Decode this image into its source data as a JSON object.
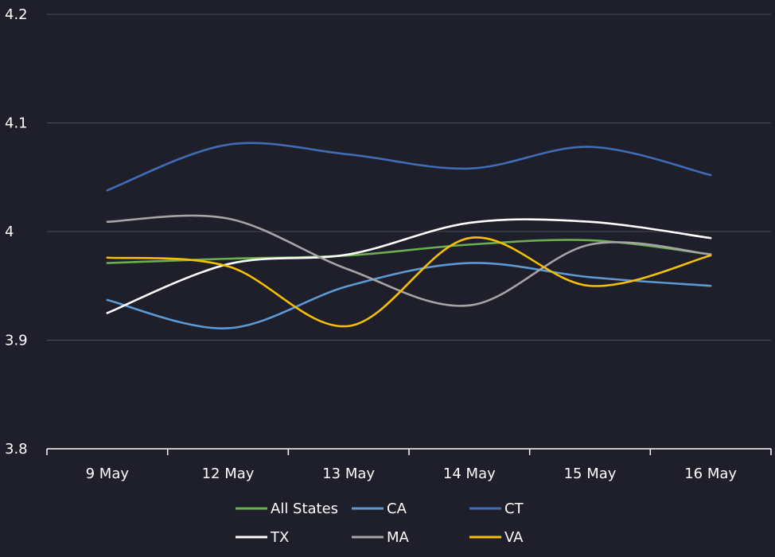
{
  "chart_data": {
    "type": "line",
    "categories": [
      "9 May",
      "12 May",
      "13 May",
      "14 May",
      "15 May",
      "16 May"
    ],
    "ylim": [
      3.8,
      4.2
    ],
    "yticks": [
      "3.8",
      "3.9",
      "4",
      "4.1",
      "4.2"
    ],
    "grid": true,
    "legend_position": "bottom",
    "series": [
      {
        "name": "All States",
        "color": "#6ab04c",
        "values": [
          3.971,
          3.975,
          3.978,
          3.988,
          3.992,
          3.979
        ]
      },
      {
        "name": "CA",
        "color": "#5b9bd5",
        "values": [
          3.937,
          3.911,
          3.95,
          3.971,
          3.958,
          3.95
        ]
      },
      {
        "name": "CT",
        "color": "#3f6db5",
        "values": [
          4.038,
          4.08,
          4.071,
          4.058,
          4.078,
          4.052
        ]
      },
      {
        "name": "TX",
        "color": "#ffffff",
        "values": [
          3.925,
          3.97,
          3.979,
          4.008,
          4.009,
          3.994
        ]
      },
      {
        "name": "MA",
        "color": "#a5a5a5",
        "values": [
          4.009,
          4.012,
          3.965,
          3.932,
          3.988,
          3.979
        ]
      },
      {
        "name": "VA",
        "color": "#f5c000",
        "values": [
          3.976,
          3.968,
          3.913,
          3.994,
          3.95,
          3.978
        ]
      }
    ]
  }
}
